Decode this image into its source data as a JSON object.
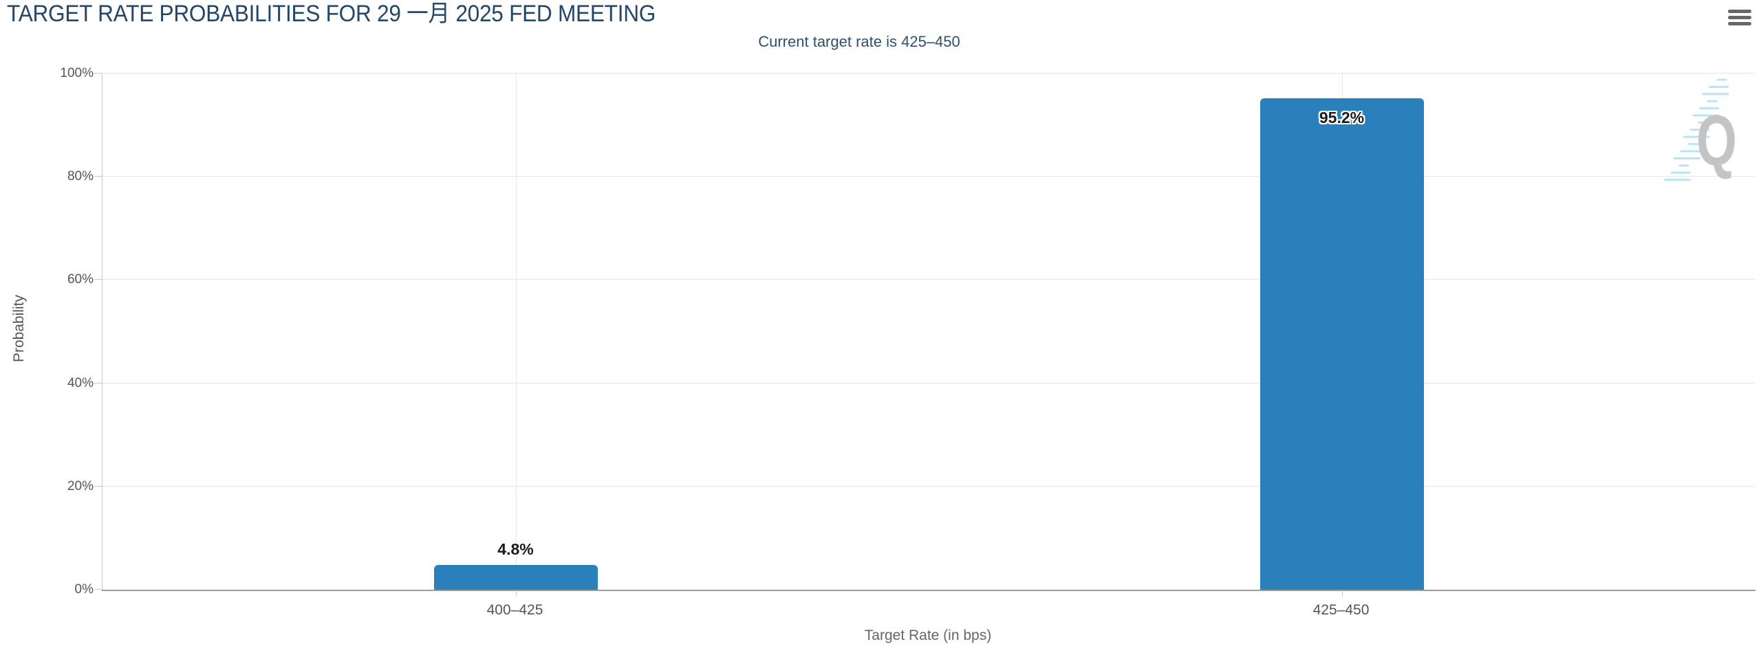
{
  "header": {
    "export_menu_icon": "hamburger-icon"
  },
  "chart_data": {
    "type": "bar",
    "title": "TARGET RATE PROBABILITIES FOR 29 一月 2025 FED MEETING",
    "subtitle": "Current target rate is 425–450",
    "categories": [
      "400–425",
      "425–450"
    ],
    "values": [
      4.8,
      95.2
    ],
    "data_labels": [
      "4.8%",
      "95.2%"
    ],
    "xlabel": "Target Rate (in bps)",
    "ylabel": "Probability",
    "ylim": [
      0,
      100
    ],
    "yticks": [
      "0%",
      "20%",
      "40%",
      "60%",
      "80%",
      "100%"
    ],
    "grid": true,
    "legend_position": "none",
    "colors": {
      "bar": "#2a80ba",
      "title": "#234768",
      "subtitle": "#2d4f71",
      "axis_labels": "#555555",
      "gridline": "#e7e7e7",
      "axis_line": "#9b9b9b",
      "watermark_gray": "#c4c4c4",
      "watermark_blue": "#b9e4f3"
    },
    "watermark_letter": "Q"
  }
}
